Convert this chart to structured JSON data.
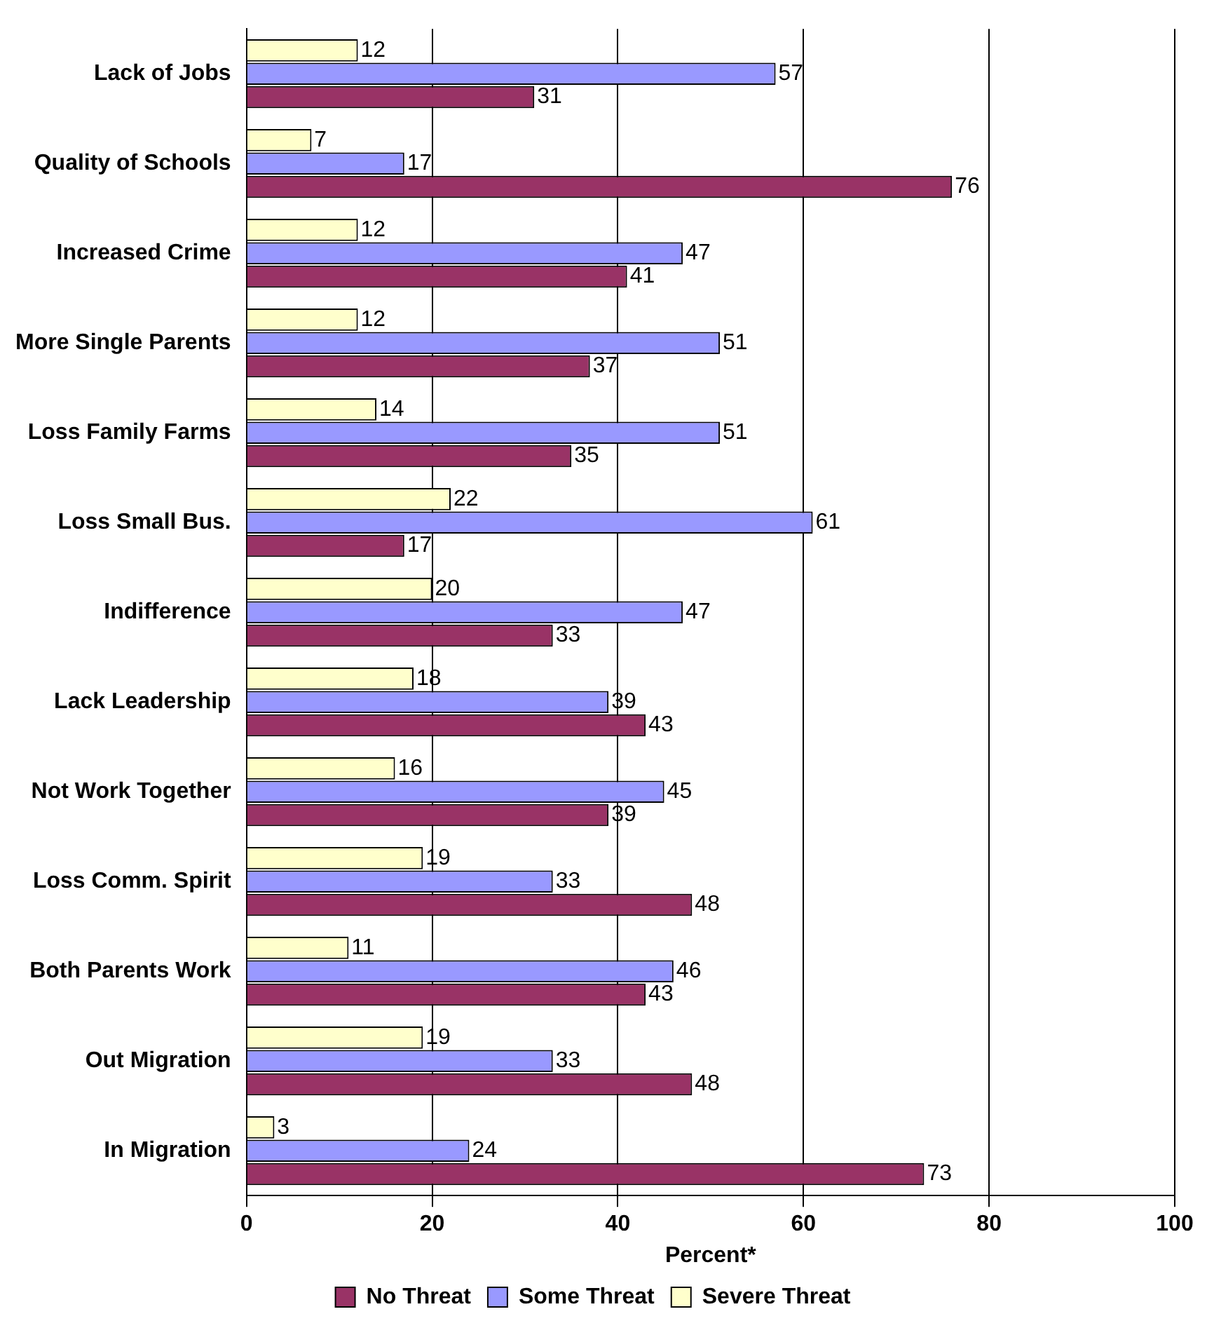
{
  "chart_data": {
    "type": "bar",
    "orientation": "horizontal",
    "xlabel": "Percent*",
    "categories": [
      "Lack of Jobs",
      "Quality of Schools",
      "Increased Crime",
      "More Single Parents",
      "Loss Family Farms",
      "Loss Small Bus.",
      "Indifference",
      "Lack Leadership",
      "Not Work Together",
      "Loss Comm. Spirit",
      "Both Parents Work",
      "Out Migration",
      "In Migration"
    ],
    "series": [
      {
        "name": "Severe Threat",
        "color": "#ffffcc",
        "values": [
          12,
          7,
          12,
          12,
          14,
          22,
          20,
          18,
          16,
          19,
          11,
          19,
          3
        ]
      },
      {
        "name": "Some Threat",
        "color": "#9999ff",
        "values": [
          57,
          17,
          47,
          51,
          51,
          61,
          47,
          39,
          45,
          33,
          46,
          33,
          24
        ]
      },
      {
        "name": "No Threat",
        "color": "#993366",
        "values": [
          31,
          76,
          41,
          37,
          35,
          17,
          33,
          43,
          39,
          48,
          43,
          48,
          73
        ]
      }
    ],
    "xlim": [
      0,
      100
    ],
    "xticks": [
      0,
      20,
      40,
      60,
      80,
      100
    ],
    "grid": "x",
    "legend": "bottom",
    "data_labels": true
  }
}
